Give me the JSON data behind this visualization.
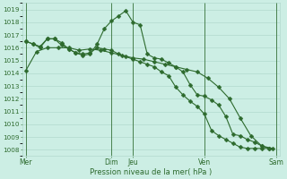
{
  "bg_color": "#cceee4",
  "grid_color": "#aad4c8",
  "line_color": "#2d6a2d",
  "xlabel": "Pression niveau de la mer( hPa )",
  "ylim": [
    1007.5,
    1019.5
  ],
  "yticks": [
    1008,
    1009,
    1010,
    1011,
    1012,
    1013,
    1014,
    1015,
    1016,
    1017,
    1018,
    1019
  ],
  "xlim": [
    -0.5,
    35.5
  ],
  "xtick_positions": [
    0,
    12,
    15,
    25,
    35
  ],
  "xtick_labels": [
    "Mer",
    "Dim",
    "Jeu",
    "Ven",
    "Sam"
  ],
  "vlines_x": [
    0,
    12,
    15,
    25,
    35
  ],
  "s1_x": [
    0,
    1.5,
    3.0,
    4.5,
    6.0,
    7.5,
    9.0,
    10.5,
    12.0,
    13.5,
    15.0,
    16.5,
    18.0,
    19.5,
    21.0,
    22.5,
    24.0,
    25.5,
    27.0,
    28.5,
    30.0,
    31.5,
    33.0,
    34.5
  ],
  "s1_y": [
    1014.2,
    1015.7,
    1016.0,
    1016.0,
    1016.0,
    1015.8,
    1015.9,
    1015.8,
    1015.6,
    1015.4,
    1015.2,
    1015.1,
    1014.9,
    1014.7,
    1014.5,
    1014.3,
    1014.1,
    1013.6,
    1012.9,
    1012.0,
    1010.5,
    1009.1,
    1008.3,
    1008.1
  ],
  "s2_x": [
    0,
    1,
    2,
    3,
    4,
    5,
    6,
    7,
    8,
    9,
    10,
    11,
    12,
    13,
    14,
    15,
    16,
    17,
    18,
    19,
    20,
    21,
    22,
    23,
    24,
    25,
    26,
    27,
    28,
    29,
    30,
    31,
    32,
    33,
    34
  ],
  "s2_y": [
    1016.5,
    1016.3,
    1016.0,
    1016.7,
    1016.7,
    1016.4,
    1015.9,
    1015.6,
    1015.4,
    1015.5,
    1016.3,
    1017.5,
    1018.1,
    1018.5,
    1018.9,
    1018.0,
    1017.8,
    1015.5,
    1015.2,
    1015.1,
    1014.8,
    1014.5,
    1014.1,
    1013.1,
    1012.3,
    1012.2,
    1011.9,
    1011.5,
    1010.6,
    1009.2,
    1009.1,
    1008.8,
    1008.6,
    1008.3,
    1008.1
  ],
  "s3_x": [
    0,
    1,
    2,
    3,
    4,
    5,
    6,
    7,
    8,
    9,
    10,
    11,
    12,
    13,
    14,
    15,
    16,
    17,
    18,
    19,
    20,
    21,
    22,
    23,
    24,
    25,
    26,
    27,
    28,
    29,
    30,
    31,
    32,
    33,
    34
  ],
  "s3_y": [
    1016.5,
    1016.3,
    1016.1,
    1016.7,
    1016.7,
    1016.2,
    1015.9,
    1015.6,
    1015.5,
    1015.6,
    1016.0,
    1015.9,
    1015.8,
    1015.5,
    1015.3,
    1015.1,
    1014.9,
    1014.7,
    1014.5,
    1014.1,
    1013.8,
    1012.9,
    1012.3,
    1011.8,
    1011.4,
    1010.8,
    1009.5,
    1009.1,
    1008.8,
    1008.5,
    1008.2,
    1008.1,
    1008.1,
    1008.1,
    1008.1
  ]
}
